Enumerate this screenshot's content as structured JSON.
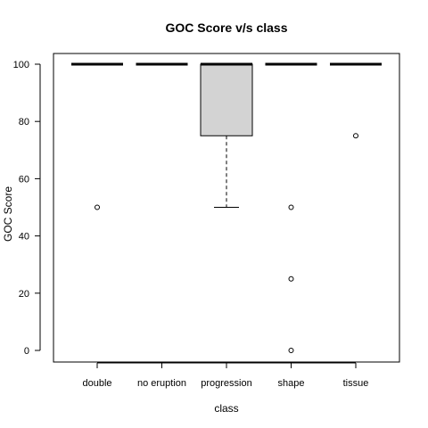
{
  "chart_data": {
    "type": "boxplot",
    "title": "GOC Score v/s class",
    "xlabel": "class",
    "ylabel": "GOC Score",
    "ylim": [
      -4,
      104
    ],
    "yticks": [
      0,
      20,
      40,
      60,
      80,
      100
    ],
    "categories": [
      "double",
      "no eruption",
      "progression",
      "shape",
      "tissue"
    ],
    "boxes": [
      {
        "category": "double",
        "min": 100,
        "q1": 100,
        "median": 100,
        "q3": 100,
        "max": 100,
        "outliers": [
          50
        ]
      },
      {
        "category": "no eruption",
        "min": 100,
        "q1": 100,
        "median": 100,
        "q3": 100,
        "max": 100,
        "outliers": []
      },
      {
        "category": "progression",
        "min": 50,
        "q1": 75,
        "median": 100,
        "q3": 100,
        "max": 100,
        "outliers": []
      },
      {
        "category": "shape",
        "min": 100,
        "q1": 100,
        "median": 100,
        "q3": 100,
        "max": 100,
        "outliers": [
          50,
          25,
          0
        ]
      },
      {
        "category": "tissue",
        "min": 100,
        "q1": 100,
        "median": 100,
        "q3": 100,
        "max": 100,
        "outliers": [
          75
        ]
      }
    ],
    "colors": {
      "box_fill": "#d3d3d3",
      "line": "#000000",
      "background": "#ffffff"
    }
  }
}
